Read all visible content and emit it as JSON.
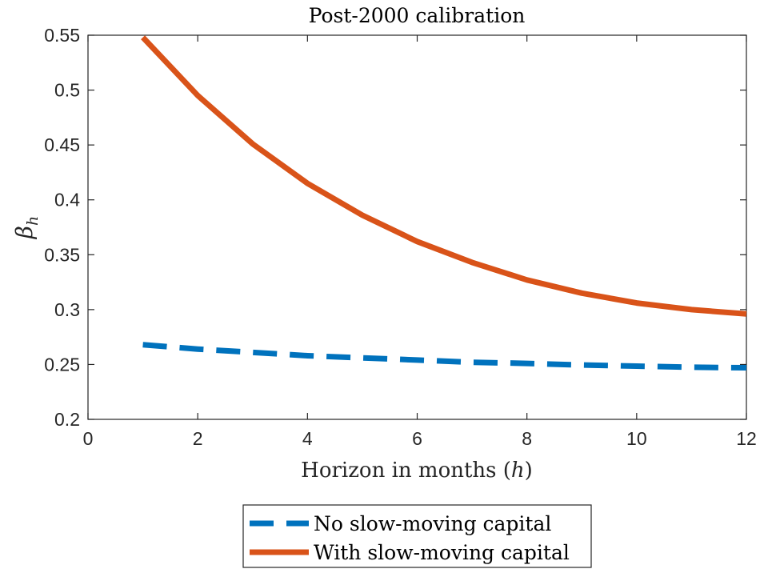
{
  "chart_data": {
    "type": "line",
    "title": "Post-2000 calibration",
    "xlabel": "Horizon in months (h)",
    "ylabel": "βh",
    "xlim": [
      0,
      12
    ],
    "ylim": [
      0.2,
      0.55
    ],
    "xticks": [
      0,
      2,
      4,
      6,
      8,
      10,
      12
    ],
    "xtick_labels": [
      "0",
      "2",
      "4",
      "6",
      "8",
      "10",
      "12"
    ],
    "yticks": [
      0.2,
      0.25,
      0.3,
      0.35,
      0.4,
      0.45,
      0.5,
      0.55
    ],
    "ytick_labels": [
      "0.2",
      "0.25",
      "0.3",
      "0.35",
      "0.4",
      "0.45",
      "0.5",
      "0.55"
    ],
    "grid": false,
    "legend_position": "bottom-outside",
    "x": [
      1,
      2,
      3,
      4,
      5,
      6,
      7,
      8,
      9,
      10,
      11,
      12
    ],
    "series": [
      {
        "name": "No slow-moving capital",
        "style": "dashed",
        "color": "#0072BD",
        "values": [
          0.268,
          0.264,
          0.261,
          0.258,
          0.256,
          0.254,
          0.252,
          0.251,
          0.2495,
          0.2485,
          0.2475,
          0.247
        ]
      },
      {
        "name": "With slow-moving capital",
        "style": "solid",
        "color": "#D95319",
        "values": [
          0.548,
          0.495,
          0.451,
          0.415,
          0.386,
          0.362,
          0.343,
          0.327,
          0.315,
          0.306,
          0.3,
          0.296
        ]
      }
    ]
  }
}
